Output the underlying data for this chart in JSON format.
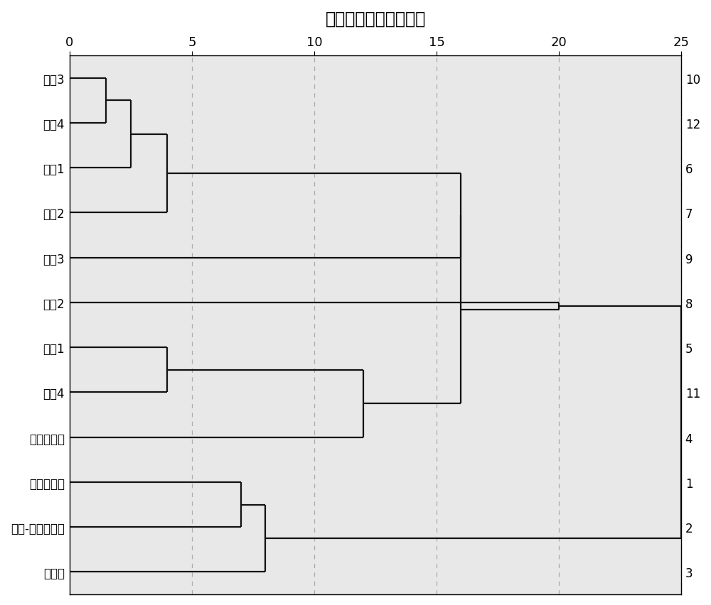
{
  "title": "聚类分析图（电镀厂）",
  "title_fontsize": 17,
  "labels": [
    "母质3",
    "母质4",
    "母质1",
    "表土2",
    "表土3",
    "母质2",
    "表土1",
    "表土4",
    "排污口污泥",
    "洋丰复合肥",
    "有机-无机复合肥",
    "有机肥"
  ],
  "node_ids": [
    10,
    12,
    6,
    7,
    9,
    8,
    5,
    11,
    4,
    1,
    2,
    3
  ],
  "xlim": [
    0,
    25
  ],
  "ylim": [
    -0.5,
    11.5
  ],
  "background_color": "#e8e8e8",
  "line_color": "#111111",
  "line_width": 1.6,
  "grid_color": "#aaaaaa",
  "grid_dash": [
    5,
    5
  ],
  "xticks": [
    0,
    5,
    10,
    15,
    20,
    25
  ],
  "d_10_12": 1.5,
  "d_10_12_6": 2.5,
  "d_10_12_6_7": 4.0,
  "d_grpA_9": 16.0,
  "d_5_11": 4.0,
  "d_5_11_4": 12.0,
  "d_grpAB_grpC": 16.0,
  "d_big_8": 20.0,
  "d_1_2": 7.0,
  "d_1_2_3": 8.0,
  "d_all": 25.0
}
